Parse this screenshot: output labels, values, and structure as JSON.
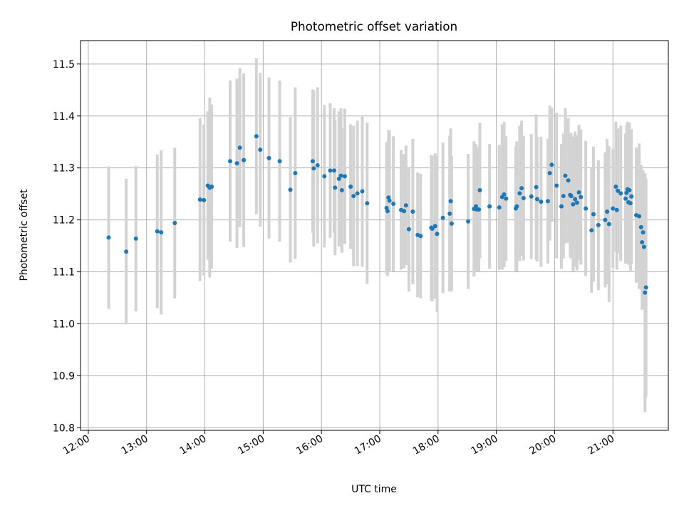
{
  "chart_data": {
    "type": "scatter",
    "title": "Photometric offset variation",
    "xlabel": "UTC time",
    "ylabel": "Photometric offset",
    "x_unit": "hours UTC",
    "xlim": [
      "11:52",
      "21:57"
    ],
    "ylim": [
      10.795,
      11.545
    ],
    "x_ticks": [
      "12:00",
      "13:00",
      "14:00",
      "15:00",
      "16:00",
      "17:00",
      "18:00",
      "19:00",
      "20:00",
      "21:00"
    ],
    "y_ticks": [
      "10.8",
      "10.9",
      "11.0",
      "11.1",
      "11.2",
      "11.3",
      "11.4",
      "11.5"
    ],
    "grid": true,
    "colors": {
      "points": "#1f77b4",
      "errorbars": "#d3d3d3",
      "grid": "#b0b0b0"
    },
    "series": [
      {
        "points": [
          [
            "12:21",
            11.166,
            0.137
          ],
          [
            "12:39",
            11.139,
            0.14
          ],
          [
            "12:49",
            11.164,
            0.14
          ],
          [
            "13:11",
            11.178,
            0.148
          ],
          [
            "13:15",
            11.176,
            0.158
          ],
          [
            "13:29",
            11.194,
            0.145
          ],
          [
            "13:55",
            11.239,
            0.157
          ],
          [
            "13:59",
            11.238,
            0.145
          ],
          [
            "14:03",
            11.266,
            0.143
          ],
          [
            "14:05",
            11.262,
            0.173
          ],
          [
            "14:07",
            11.264,
            0.158
          ],
          [
            "14:26",
            11.313,
            0.155
          ],
          [
            "14:33",
            11.309,
            0.163
          ],
          [
            "14:36",
            11.339,
            0.153
          ],
          [
            "14:40",
            11.315,
            0.167
          ],
          [
            "14:53",
            11.361,
            0.15
          ],
          [
            "14:57",
            11.335,
            0.148
          ],
          [
            "15:06",
            11.319,
            0.155
          ],
          [
            "15:17",
            11.313,
            0.155
          ],
          [
            "15:28",
            11.258,
            0.14
          ],
          [
            "15:33",
            11.29,
            0.165
          ],
          [
            "15:51",
            11.313,
            0.138
          ],
          [
            "15:52",
            11.299,
            0.15
          ],
          [
            "15:56",
            11.305,
            0.15
          ],
          [
            "16:03",
            11.284,
            0.137
          ],
          [
            "16:09",
            11.295,
            0.13
          ],
          [
            "16:13",
            11.295,
            0.12
          ],
          [
            "16:14",
            11.262,
            0.13
          ],
          [
            "16:18",
            11.279,
            0.13
          ],
          [
            "16:20",
            11.285,
            0.13
          ],
          [
            "16:21",
            11.257,
            0.12
          ],
          [
            "16:24",
            11.284,
            0.13
          ],
          [
            "16:30",
            11.264,
            0.12
          ],
          [
            "16:33",
            11.246,
            0.135
          ],
          [
            "16:37",
            11.251,
            0.14
          ],
          [
            "16:42",
            11.255,
            0.145
          ],
          [
            "16:47",
            11.232,
            0.155
          ],
          [
            "17:07",
            11.223,
            0.127
          ],
          [
            "17:08",
            11.217,
            0.125
          ],
          [
            "17:09",
            11.243,
            0.13
          ],
          [
            "17:10",
            11.237,
            0.135
          ],
          [
            "17:14",
            11.231,
            0.13
          ],
          [
            "17:22",
            11.219,
            0.115
          ],
          [
            "17:25",
            11.217,
            0.11
          ],
          [
            "17:27",
            11.228,
            0.115
          ],
          [
            "17:30",
            11.182,
            0.12
          ],
          [
            "17:34",
            11.216,
            0.14
          ],
          [
            "17:39",
            11.171,
            0.12
          ],
          [
            "17:42",
            11.169,
            0.12
          ],
          [
            "17:53",
            11.185,
            0.14
          ],
          [
            "17:54",
            11.183,
            0.14
          ],
          [
            "17:57",
            11.188,
            0.14
          ],
          [
            "17:59",
            11.173,
            0.15
          ],
          [
            "18:05",
            11.204,
            0.145
          ],
          [
            "18:12",
            11.212,
            0.15
          ],
          [
            "18:13",
            11.236,
            0.14
          ],
          [
            "18:14",
            11.193,
            0.13
          ],
          [
            "18:31",
            11.197,
            0.13
          ],
          [
            "18:37",
            11.221,
            0.13
          ],
          [
            "18:39",
            11.226,
            0.12
          ],
          [
            "18:40",
            11.22,
            0.12
          ],
          [
            "18:42",
            11.22,
            0.12
          ],
          [
            "18:43",
            11.257,
            0.13
          ],
          [
            "18:53",
            11.226,
            0.12
          ],
          [
            "19:03",
            11.224,
            0.12
          ],
          [
            "19:06",
            11.244,
            0.14
          ],
          [
            "19:08",
            11.249,
            0.14
          ],
          [
            "19:10",
            11.241,
            0.12
          ],
          [
            "19:20",
            11.222,
            0.12
          ],
          [
            "19:21",
            11.226,
            0.125
          ],
          [
            "19:24",
            11.251,
            0.13
          ],
          [
            "19:26",
            11.261,
            0.13
          ],
          [
            "19:28",
            11.242,
            0.12
          ],
          [
            "19:36",
            11.245,
            0.12
          ],
          [
            "19:41",
            11.263,
            0.14
          ],
          [
            "19:42",
            11.24,
            0.12
          ],
          [
            "19:46",
            11.235,
            0.125
          ],
          [
            "19:53",
            11.236,
            0.12
          ],
          [
            "19:55",
            11.29,
            0.13
          ],
          [
            "19:57",
            11.306,
            0.11
          ],
          [
            "20:02",
            11.266,
            0.14
          ],
          [
            "20:07",
            11.226,
            0.12
          ],
          [
            "20:09",
            11.246,
            0.12
          ],
          [
            "20:11",
            11.285,
            0.13
          ],
          [
            "20:14",
            11.276,
            0.12
          ],
          [
            "20:16",
            11.248,
            0.12
          ],
          [
            "20:17",
            11.246,
            0.12
          ],
          [
            "20:19",
            11.23,
            0.13
          ],
          [
            "20:21",
            11.24,
            0.13
          ],
          [
            "20:23",
            11.233,
            0.13
          ],
          [
            "20:25",
            11.253,
            0.13
          ],
          [
            "20:27",
            11.244,
            0.13
          ],
          [
            "20:32",
            11.222,
            0.13
          ],
          [
            "20:38",
            11.18,
            0.12
          ],
          [
            "20:40",
            11.211,
            0.13
          ],
          [
            "20:45",
            11.19,
            0.125
          ],
          [
            "20:52",
            11.2,
            0.13
          ],
          [
            "20:54",
            11.216,
            0.14
          ],
          [
            "20:56",
            11.192,
            0.15
          ],
          [
            "21:00",
            11.222,
            0.115
          ],
          [
            "21:04",
            11.219,
            0.115
          ],
          [
            "21:03",
            11.264,
            0.125
          ],
          [
            "21:05",
            11.256,
            0.12
          ],
          [
            "21:08",
            11.251,
            0.13
          ],
          [
            "21:13",
            11.241,
            0.125
          ],
          [
            "21:14",
            11.252,
            0.13
          ],
          [
            "21:15",
            11.259,
            0.13
          ],
          [
            "21:16",
            11.234,
            0.12
          ],
          [
            "21:17",
            11.257,
            0.13
          ],
          [
            "21:18",
            11.232,
            0.13
          ],
          [
            "21:19",
            11.245,
            0.13
          ],
          [
            "21:24",
            11.209,
            0.13
          ],
          [
            "21:27",
            11.207,
            0.14
          ],
          [
            "21:29",
            11.186,
            0.12
          ],
          [
            "21:30",
            11.157,
            0.13
          ],
          [
            "21:31",
            11.176,
            0.12
          ],
          [
            "21:32",
            11.148,
            0.12
          ],
          [
            "21:33",
            11.06,
            0.23
          ],
          [
            "21:34",
            11.07,
            0.21
          ]
        ]
      }
    ]
  }
}
